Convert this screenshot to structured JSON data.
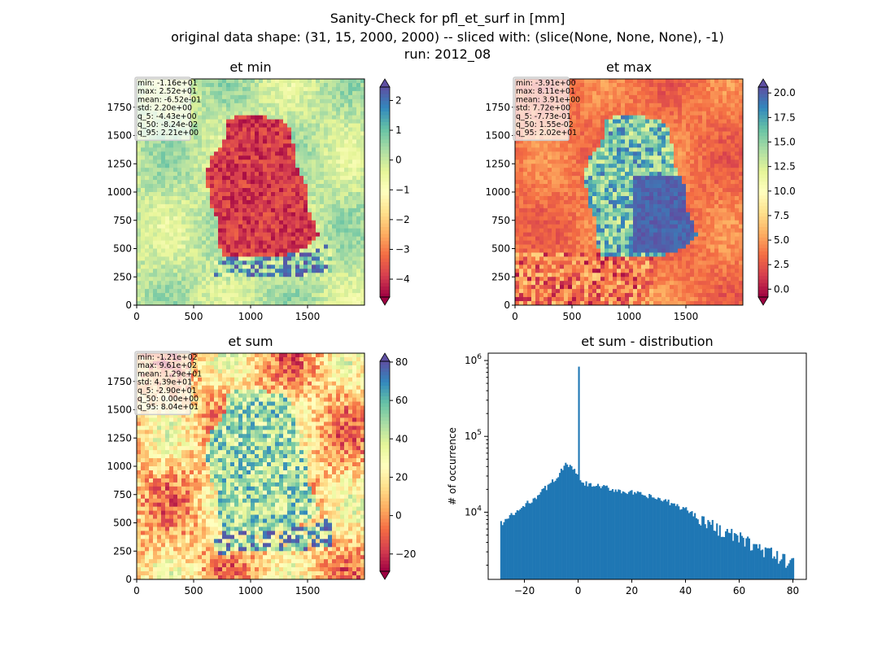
{
  "suptitle": {
    "line1": "Sanity-Check for pfl_et_surf in [mm]",
    "line2": "original data shape: (31, 15, 2000, 2000) -- sliced with: (slice(None, None, None), -1)",
    "line3": "run: 2012_08"
  },
  "colors": {
    "spectral": [
      "#9e0142",
      "#d53e4f",
      "#f46d43",
      "#fdae61",
      "#fee08b",
      "#ffffbf",
      "#e6f598",
      "#abdda4",
      "#66c2a5",
      "#3288bd",
      "#5e4fa2"
    ],
    "histogram_bar": "#1f77b4",
    "stats_box_bg": "#ffffff",
    "stats_box_edge": "#cccccc"
  },
  "chart_data": [
    {
      "type": "heatmap",
      "title": "et min",
      "xlim": [
        0,
        2000
      ],
      "ylim": [
        0,
        2000
      ],
      "xticks": [
        0,
        500,
        1000,
        1500
      ],
      "yticks": [
        0,
        250,
        500,
        750,
        1000,
        1250,
        1500,
        1750
      ],
      "colorbar": {
        "vmin": -4.6,
        "vmax": 2.45,
        "ticks": [
          2,
          1,
          0,
          -1,
          -2,
          -3,
          -4
        ],
        "extend": "both",
        "colormap": "Spectral"
      },
      "stats": [
        "min: -1.16e+01",
        "max: 2.52e+01",
        "mean: -6.52e-01",
        "std: 2.20e+00",
        "q_5: -4.43e+00",
        "q_50: -8.24e-02",
        "q_95: 2.21e+00"
      ]
    },
    {
      "type": "heatmap",
      "title": "et max",
      "xlim": [
        0,
        2000
      ],
      "ylim": [
        0,
        2000
      ],
      "xticks": [
        0,
        500,
        1000,
        1500
      ],
      "yticks": [
        0,
        250,
        500,
        750,
        1000,
        1250,
        1500,
        1750
      ],
      "colorbar": {
        "vmin": -0.8,
        "vmax": 20.6,
        "ticks": [
          20.0,
          17.5,
          15.0,
          12.5,
          10.0,
          7.5,
          5.0,
          2.5,
          0.0
        ],
        "extend": "both",
        "colormap": "Spectral"
      },
      "stats": [
        "min: -3.91e+00",
        "max: 8.11e+01",
        "mean: 3.91e+00",
        "std: 7.72e+00",
        "q_5: -7.73e-01",
        "q_50: 1.55e-02",
        "q_95: 2.02e+01"
      ]
    },
    {
      "type": "heatmap",
      "title": "et sum",
      "xlim": [
        0,
        2000
      ],
      "ylim": [
        0,
        2000
      ],
      "xticks": [
        0,
        500,
        1000,
        1500
      ],
      "yticks": [
        0,
        250,
        500,
        750,
        1000,
        1250,
        1500,
        1750
      ],
      "colorbar": {
        "vmin": -29,
        "vmax": 80.4,
        "ticks": [
          80,
          60,
          40,
          20,
          0,
          -20
        ],
        "extend": "both",
        "colormap": "Spectral"
      },
      "stats": [
        "min: -1.21e+02",
        "max: 9.61e+02",
        "mean: 1.29e+01",
        "std: 4.39e+01",
        "q_5: -2.90e+01",
        "q_50: 0.00e+00",
        "q_95: 8.04e+01"
      ]
    },
    {
      "type": "bar",
      "title": "et sum - distribution",
      "ylabel": "# of occurrence",
      "yscale": "log",
      "xlim": [
        -33.5,
        85
      ],
      "ylim": [
        1300,
        1250000
      ],
      "xticks": [
        -20,
        0,
        20,
        40,
        60,
        80
      ],
      "x_range": [
        -29,
        80.4
      ],
      "spike": {
        "x": 0,
        "value": 830000
      },
      "profile": [
        {
          "x": -29,
          "value": 7000
        },
        {
          "x": -20,
          "value": 12000
        },
        {
          "x": -10,
          "value": 24000
        },
        {
          "x": -4,
          "value": 44000
        },
        {
          "x": -1,
          "value": 33000
        },
        {
          "x": 1,
          "value": 24000
        },
        {
          "x": 10,
          "value": 21000
        },
        {
          "x": 20,
          "value": 18000
        },
        {
          "x": 30,
          "value": 15000
        },
        {
          "x": 40,
          "value": 11000
        },
        {
          "x": 50,
          "value": 6500
        },
        {
          "x": 60,
          "value": 4500
        },
        {
          "x": 70,
          "value": 3000
        },
        {
          "x": 78,
          "value": 2200
        },
        {
          "x": 80.4,
          "value": 2600
        }
      ]
    }
  ]
}
